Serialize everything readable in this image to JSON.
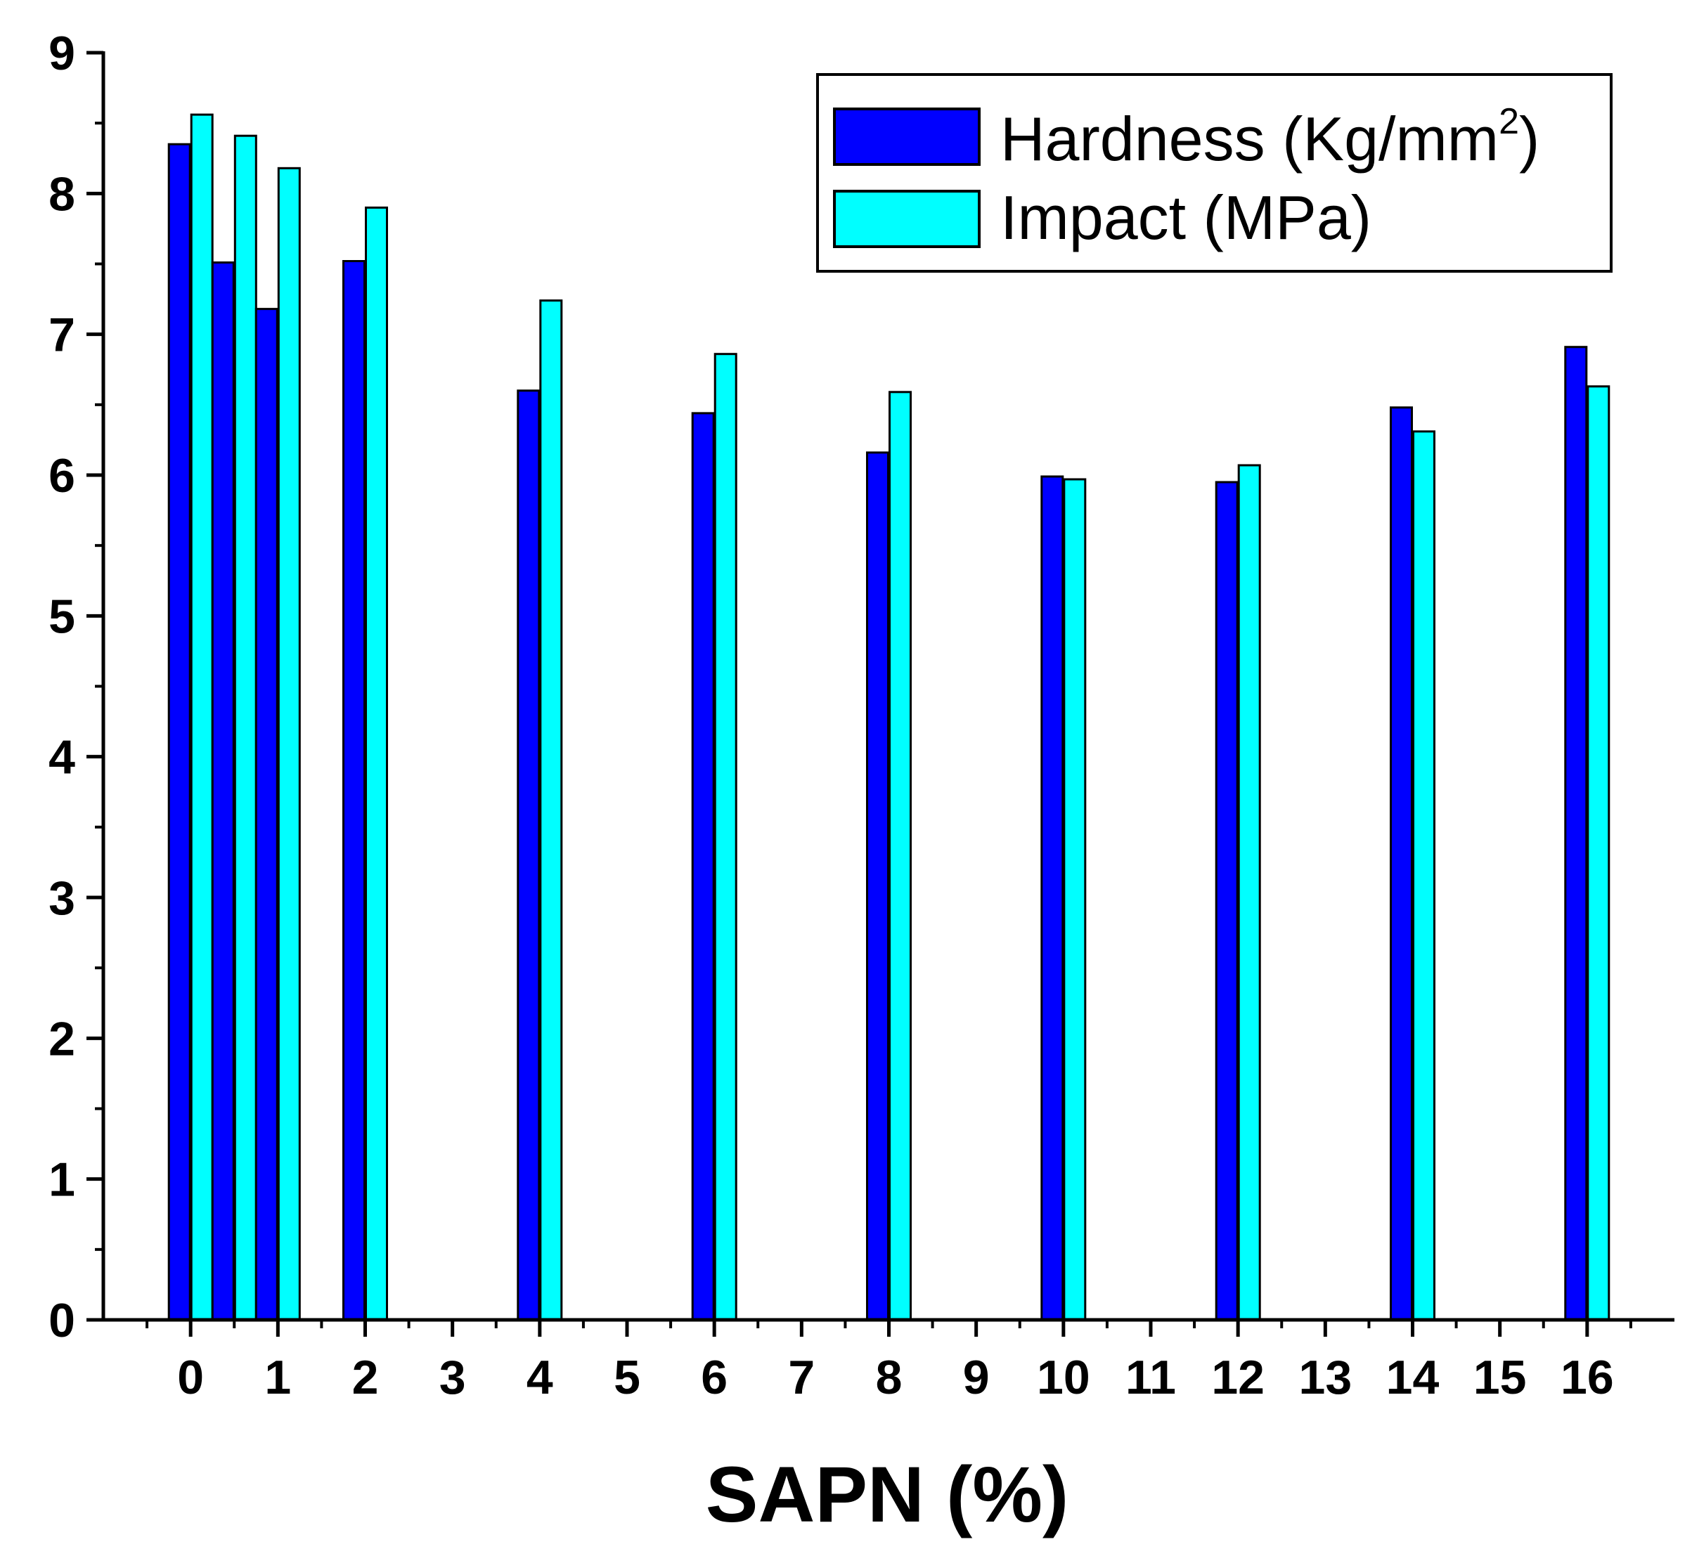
{
  "chart_data": {
    "type": "bar",
    "xlabel": "SAPN (%)",
    "ylabel": "",
    "xlim": [
      -1,
      17
    ],
    "ylim": [
      0,
      9
    ],
    "x_ticks": [
      0,
      1,
      2,
      3,
      4,
      5,
      6,
      7,
      8,
      9,
      10,
      11,
      12,
      13,
      14,
      15,
      16
    ],
    "y_ticks": [
      0,
      1,
      2,
      3,
      4,
      5,
      6,
      7,
      8,
      9
    ],
    "x": [
      0,
      0.5,
      1,
      2,
      4,
      6,
      8,
      10,
      12,
      14,
      16
    ],
    "series": [
      {
        "name": "Hardness (Kg/mm2)",
        "label_main": "Hardness (Kg/mm",
        "label_sup": "2",
        "label_end": ")",
        "color": "#0000ff",
        "values": [
          8.35,
          7.51,
          7.18,
          7.52,
          6.6,
          6.44,
          6.16,
          5.99,
          5.95,
          6.48,
          6.91
        ]
      },
      {
        "name": "Impact (MPa)",
        "label_main": "Impact (MPa)",
        "label_sup": "",
        "label_end": "",
        "color": "#00ffff",
        "values": [
          8.56,
          8.41,
          8.18,
          7.9,
          7.24,
          6.86,
          6.59,
          5.97,
          6.07,
          6.31,
          6.63
        ]
      }
    ],
    "legend_position": "top-right",
    "grid": false
  }
}
